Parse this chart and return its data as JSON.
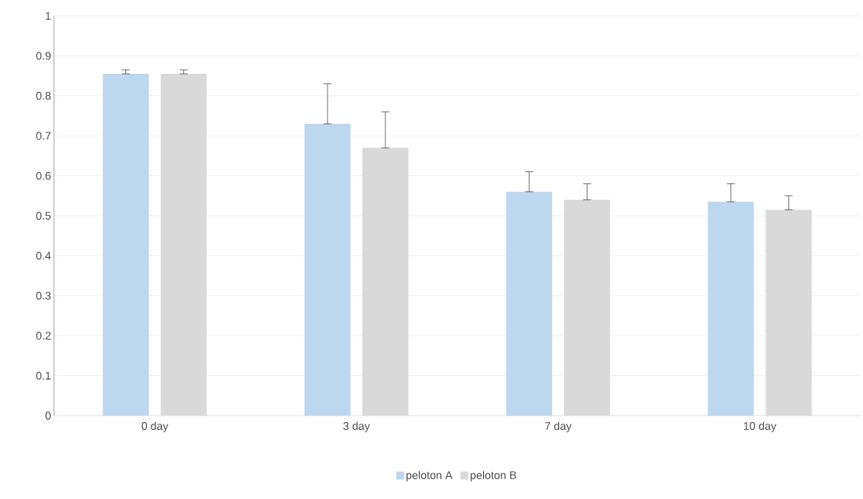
{
  "chart_data": {
    "type": "bar",
    "categories": [
      "0 day",
      "3 day",
      "7 day",
      "10 day"
    ],
    "series": [
      {
        "name": "peloton A",
        "color": "#bdd7ee",
        "values": [
          0.855,
          0.73,
          0.56,
          0.535
        ],
        "errors": [
          [
            0.855,
            0.865
          ],
          [
            0.73,
            0.83
          ],
          [
            0.56,
            0.61
          ],
          [
            0.535,
            0.58
          ]
        ]
      },
      {
        "name": "peloton B",
        "color": "#d9d9d9",
        "values": [
          0.855,
          0.67,
          0.54,
          0.515
        ],
        "errors": [
          [
            0.855,
            0.865
          ],
          [
            0.67,
            0.76
          ],
          [
            0.54,
            0.58
          ],
          [
            0.515,
            0.55
          ]
        ]
      }
    ],
    "ylim": [
      0,
      1
    ],
    "yticks": [
      0,
      0.1,
      0.2,
      0.3,
      0.4,
      0.5,
      0.6,
      0.7,
      0.8,
      0.9,
      1
    ],
    "grid": "y",
    "legend": "bottom"
  }
}
